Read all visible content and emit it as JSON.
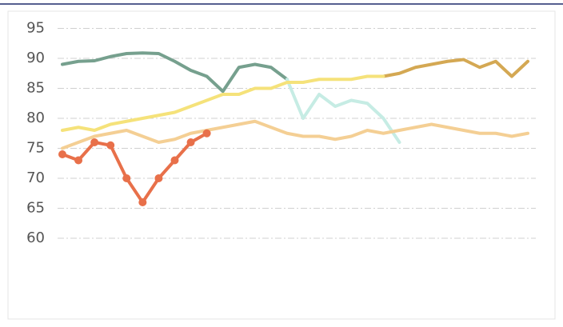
{
  "chart_data": {
    "type": "line",
    "categories": [
      null,
      null,
      null,
      null,
      null,
      null,
      null,
      null,
      null,
      null,
      null,
      null,
      null,
      null,
      null,
      null,
      null,
      null,
      null,
      null,
      null,
      null,
      null,
      null,
      null,
      null,
      null,
      null,
      null,
      null
    ],
    "series": [
      {
        "color": "#76a08e",
        "values": [
          89,
          89.5,
          89.6,
          90.3,
          90.8,
          90.9,
          90.8,
          89.5,
          88,
          87,
          84.5,
          88.5,
          89,
          88.5,
          86.5,
          null,
          null,
          null,
          null,
          null,
          null,
          null,
          null,
          null,
          null,
          null,
          null,
          null,
          null,
          null
        ]
      },
      {
        "color": "#c6ece4",
        "values": [
          null,
          null,
          null,
          null,
          null,
          null,
          null,
          null,
          null,
          null,
          null,
          null,
          null,
          null,
          86.5,
          80,
          84,
          82,
          83,
          82.5,
          80,
          76,
          null,
          null,
          null,
          null,
          null,
          null,
          null,
          null
        ]
      },
      {
        "color": "#d4a853",
        "values": [
          null,
          null,
          null,
          null,
          null,
          null,
          null,
          null,
          null,
          null,
          null,
          null,
          null,
          null,
          null,
          null,
          null,
          null,
          null,
          null,
          87,
          87.5,
          88.5,
          89,
          89.5,
          89.8,
          88.5,
          89.5,
          87,
          89.5
        ]
      },
      {
        "color": "#f5e27a",
        "values": [
          78,
          78.5,
          78,
          79,
          79.5,
          80,
          80.5,
          81,
          82,
          83,
          84,
          84,
          85,
          85,
          86,
          86,
          86.5,
          86.5,
          86.5,
          87,
          87,
          null,
          null,
          null,
          null,
          null,
          null,
          null,
          null,
          null
        ]
      },
      {
        "color": "#f4cf94",
        "values": [
          75,
          76,
          77,
          77.5,
          78,
          77,
          76,
          76.5,
          77.5,
          78,
          78.5,
          79,
          79.5,
          78.5,
          77.5,
          77,
          77,
          76.5,
          77,
          78,
          77.5,
          78,
          78.5,
          79,
          78.5,
          78,
          77.5,
          77.5,
          77,
          77.5
        ]
      },
      {
        "color": "#e8704a",
        "markers": true,
        "values": [
          74,
          73,
          76,
          75.5,
          70,
          66,
          70,
          73,
          76,
          77.5,
          null,
          null,
          null,
          null,
          null,
          null,
          null,
          null,
          null,
          null,
          null,
          null,
          null,
          null,
          null,
          null,
          null,
          null,
          null,
          null
        ]
      }
    ],
    "ylim": [
      58,
      96
    ],
    "yticks": [
      60,
      65,
      70,
      75,
      80,
      85,
      90,
      95
    ],
    "grid": true
  }
}
